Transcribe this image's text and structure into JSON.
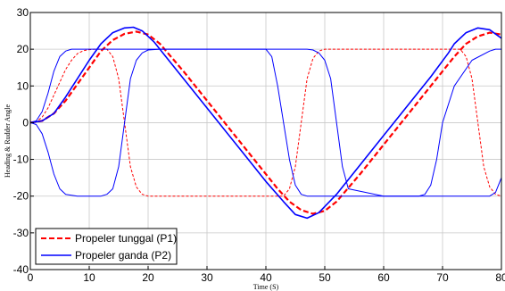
{
  "chart_data": {
    "type": "line",
    "title": "",
    "xlabel": "Time (S)",
    "ylabel": "Heading & Rudder Angle",
    "xlim": [
      0,
      80
    ],
    "ylim": [
      -40,
      30
    ],
    "xticks": [
      0,
      10,
      20,
      30,
      40,
      50,
      60,
      70,
      80
    ],
    "yticks": [
      -40,
      -30,
      -20,
      -10,
      0,
      10,
      20,
      30
    ],
    "grid": true,
    "legend_position": "bottom-left",
    "series": [
      {
        "name": "Propeler tunggal (P1)",
        "color": "#ff0000",
        "style": "dashed",
        "x": [
          0,
          2,
          4,
          6,
          8,
          10,
          12,
          14,
          16,
          18,
          20,
          22,
          26,
          30,
          34,
          38,
          42,
          44,
          46,
          48,
          50,
          52,
          56,
          60,
          64,
          68,
          72,
          74,
          76,
          78,
          80
        ],
        "y": [
          0,
          0.5,
          2.5,
          6,
          10.5,
          15,
          19.5,
          22.5,
          24.2,
          24.8,
          24,
          21.5,
          14,
          6,
          -2,
          -10,
          -18,
          -21.5,
          -23.8,
          -24.8,
          -24,
          -21.5,
          -14,
          -6,
          2,
          10,
          18,
          21.5,
          23.5,
          24.5,
          24
        ]
      },
      {
        "name": "",
        "color": "#ff0000",
        "style": "dashed-thin",
        "x": [
          0,
          1,
          2,
          3,
          4,
          5,
          6,
          7,
          8,
          9,
          10,
          11,
          12,
          13,
          14,
          15,
          16,
          17,
          18,
          19,
          20,
          22,
          30,
          40,
          42,
          43,
          44,
          45,
          46,
          47,
          48,
          49,
          50,
          52,
          60,
          70,
          72,
          73,
          74,
          75,
          76,
          77,
          78,
          79,
          80
        ],
        "y": [
          0,
          0.3,
          1.5,
          4,
          7.5,
          11,
          14.5,
          17,
          18.8,
          19.6,
          19.9,
          20,
          20,
          20,
          18,
          12,
          0,
          -12,
          -17.5,
          -19.5,
          -20,
          -20,
          -20,
          -20,
          -20,
          -20,
          -18,
          -12,
          0,
          12,
          17.5,
          19.5,
          20,
          20,
          20,
          20,
          20,
          20,
          18,
          12,
          0,
          -12,
          -17.5,
          -19.5,
          -20
        ]
      },
      {
        "name": "Propeler ganda (P2)",
        "color": "#0000ff",
        "style": "solid",
        "x": [
          0,
          2,
          4,
          6,
          8,
          10,
          12,
          14,
          16,
          17.5,
          19,
          21,
          24,
          28,
          32,
          36,
          40,
          43,
          45,
          47,
          49,
          52,
          56,
          60,
          64,
          68,
          71,
          72,
          74,
          76,
          78,
          80
        ],
        "y": [
          0,
          0.5,
          2.5,
          7,
          12,
          17,
          21.5,
          24.5,
          25.8,
          26,
          25,
          22,
          16,
          8,
          0,
          -8,
          -16,
          -21.5,
          -25,
          -26,
          -24.5,
          -19.5,
          -11.5,
          -3.5,
          4.5,
          12.5,
          19,
          21.5,
          24.5,
          25.8,
          25.3,
          23
        ]
      },
      {
        "name": "",
        "color": "#0000ff",
        "style": "solid-thin",
        "x": [
          0,
          1,
          2,
          3,
          4,
          5,
          6,
          7,
          8,
          9,
          10,
          12,
          14,
          16,
          18,
          20,
          25,
          30,
          35,
          40,
          41,
          42,
          43,
          44,
          45,
          46,
          47,
          48,
          50,
          55,
          60,
          65,
          66,
          67,
          68,
          69,
          70,
          72,
          75,
          78,
          79,
          80
        ],
        "y": [
          0,
          0.5,
          3,
          8,
          14,
          18,
          19.5,
          20,
          20,
          20,
          20,
          20,
          20,
          20,
          20,
          20,
          20,
          20,
          20,
          20,
          18,
          10,
          0,
          -10,
          -17,
          -19.5,
          -20,
          -20,
          -20,
          -20,
          -20,
          -20,
          -20,
          -19.5,
          -17,
          -10,
          0,
          10,
          17,
          19.5,
          20,
          20
        ]
      },
      {
        "name": "",
        "color": "#0000ff",
        "style": "solid-thin",
        "x": [
          0,
          1,
          2,
          3,
          4,
          5,
          6,
          8,
          10,
          12,
          13,
          14,
          15,
          16,
          17,
          18,
          19,
          20,
          22,
          25,
          30,
          40,
          45,
          46,
          47,
          48,
          49,
          50,
          51,
          52,
          53,
          54,
          60,
          70,
          74,
          75,
          76,
          77,
          78,
          79,
          80
        ],
        "y": [
          0,
          -0.5,
          -3,
          -8,
          -14,
          -18,
          -19.5,
          -20,
          -20,
          -20,
          -19.5,
          -18,
          -12,
          0,
          12,
          17,
          19,
          19.8,
          20,
          20,
          20,
          20,
          20,
          20,
          20,
          19.8,
          19,
          17,
          12,
          0,
          -12,
          -18,
          -20,
          -20,
          -20,
          -20,
          -20,
          -20,
          -20,
          -19,
          -15
        ]
      }
    ]
  }
}
